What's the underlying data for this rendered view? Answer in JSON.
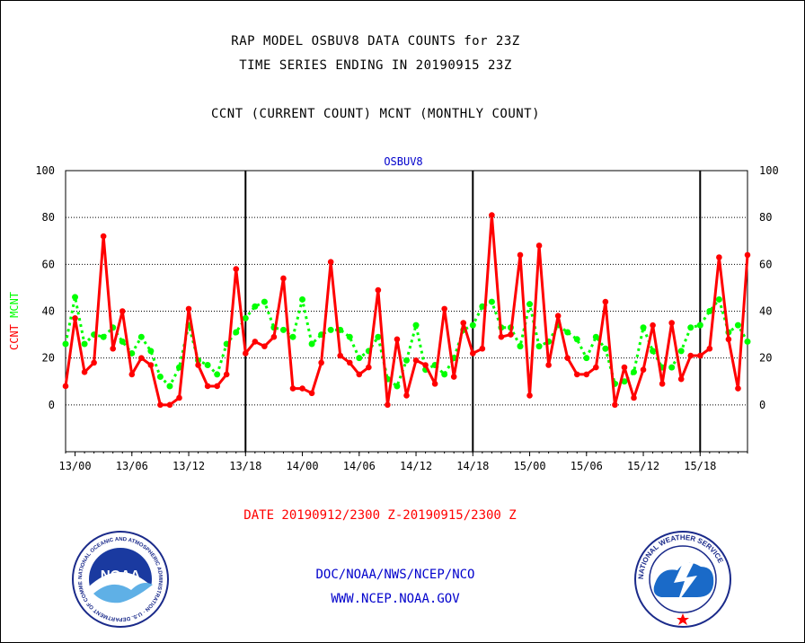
{
  "header": {
    "line1": "RAP MODEL OSBUV8 DATA COUNTS for 23Z",
    "line2": "TIME SERIES ENDING IN 20190915 23Z",
    "line3": "CCNT (CURRENT COUNT) MCNT (MONTHLY COUNT)"
  },
  "chart_data": {
    "type": "line",
    "title": "OSBUV8",
    "ylabel_parts": [
      {
        "text": "CCNT",
        "color": "#ff0000"
      },
      {
        "text": "MCNT",
        "color": "#00ff00"
      }
    ],
    "ylim": [
      -20,
      100
    ],
    "y_ticks": [
      0,
      20,
      40,
      60,
      80,
      100
    ],
    "x_tick_labels": [
      "13/00",
      "13/06",
      "13/12",
      "13/18",
      "14/00",
      "14/06",
      "14/12",
      "14/18",
      "15/00",
      "15/06",
      "15/12",
      "15/18"
    ],
    "x_start": "12/23",
    "x_end": "15/23",
    "grid": true,
    "series": [
      {
        "name": "CCNT",
        "color": "#ff0000",
        "values": [
          8,
          37,
          14,
          18,
          72,
          24,
          40,
          13,
          20,
          17,
          0,
          0,
          3,
          41,
          17,
          8,
          8,
          13,
          58,
          22,
          27,
          25,
          29,
          54,
          7,
          7,
          5,
          18,
          61,
          21,
          18,
          13,
          16,
          49,
          0,
          28,
          4,
          19,
          17,
          9,
          41,
          12,
          35,
          22,
          24,
          81,
          29,
          30,
          64,
          4,
          68,
          17,
          38,
          20,
          13,
          13,
          16,
          44,
          0,
          16,
          3,
          15,
          34,
          9,
          35,
          11,
          21,
          21,
          24,
          63,
          28,
          7,
          64
        ]
      },
      {
        "name": "MCNT",
        "color": "#00ff00",
        "values": [
          26,
          46,
          26,
          30,
          29,
          33,
          27,
          22,
          29,
          23,
          12,
          8,
          16,
          34,
          19,
          17,
          13,
          26,
          31,
          37,
          42,
          44,
          33,
          32,
          29,
          45,
          26,
          30,
          32,
          32,
          29,
          20,
          23,
          29,
          11,
          8,
          19,
          34,
          15,
          17,
          13,
          20,
          32,
          34,
          42,
          44,
          33,
          33,
          25,
          43,
          25,
          27,
          34,
          31,
          28,
          20,
          29,
          24,
          9,
          10,
          14,
          33,
          23,
          16,
          16,
          23,
          33,
          34,
          40,
          45,
          31,
          34,
          27
        ]
      }
    ]
  },
  "footer": {
    "date_range": "DATE 20190912/2300 Z-20190915/2300 Z",
    "agency": "DOC/NOAA/NWS/NCEP/NCO",
    "url": "WWW.NCEP.NOAA.GOV"
  },
  "logos": {
    "noaa": {
      "center_text": "NOAA",
      "ring_text": "NATIONAL OCEANIC AND ATMOSPHERIC ADMINISTRATION · U.S. DEPARTMENT OF COMMERCE"
    },
    "nws": {
      "ring_text": "NATIONAL WEATHER SERVICE"
    }
  }
}
